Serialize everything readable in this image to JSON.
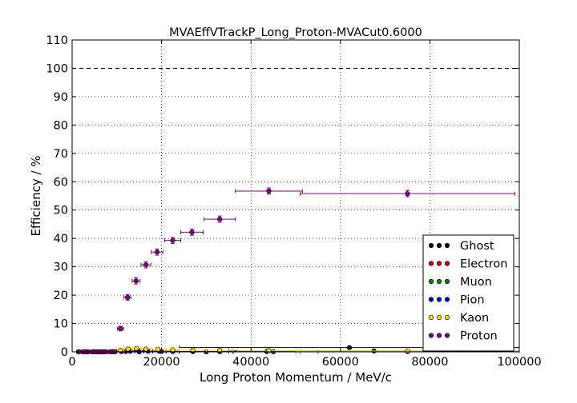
{
  "chart_data": {
    "type": "scatter",
    "title": "MVAEffVTrackP_Long_Proton-MVACut0.6000",
    "xlabel": "Long Proton Momentum / MeV/c",
    "ylabel": "Efficiency / %",
    "xlim": [
      0,
      100000
    ],
    "ylim": [
      0,
      110
    ],
    "x_ticks": [
      0,
      20000,
      40000,
      60000,
      80000,
      100000
    ],
    "y_ticks": [
      0,
      10,
      20,
      30,
      40,
      50,
      60,
      70,
      80,
      90,
      100,
      110
    ],
    "grid": true,
    "reference_line": 100,
    "legend_position": "lower-right",
    "series": [
      {
        "name": "Ghost",
        "color": "#000000",
        "points": [
          {
            "x": 1500,
            "y": 0,
            "xerr": 500,
            "yerr": 0
          },
          {
            "x": 2500,
            "y": 0,
            "xerr": 500,
            "yerr": 0
          },
          {
            "x": 3500,
            "y": 0,
            "xerr": 500,
            "yerr": 0
          },
          {
            "x": 4500,
            "y": 0,
            "xerr": 500,
            "yerr": 0
          },
          {
            "x": 5500,
            "y": 0,
            "xerr": 500,
            "yerr": 0
          },
          {
            "x": 6500,
            "y": 0,
            "xerr": 500,
            "yerr": 0
          },
          {
            "x": 7500,
            "y": 0,
            "xerr": 500,
            "yerr": 0
          },
          {
            "x": 8500,
            "y": 0,
            "xerr": 500,
            "yerr": 0
          },
          {
            "x": 9500,
            "y": 0,
            "xerr": 500,
            "yerr": 0
          },
          {
            "x": 11000,
            "y": 0.2,
            "xerr": 1000,
            "yerr": 0.3
          },
          {
            "x": 13000,
            "y": 0.3,
            "xerr": 1000,
            "yerr": 0.3
          },
          {
            "x": 15000,
            "y": 0.4,
            "xerr": 1000,
            "yerr": 0.3
          },
          {
            "x": 17000,
            "y": 0.3,
            "xerr": 1000,
            "yerr": 0.3
          },
          {
            "x": 19500,
            "y": 0.2,
            "xerr": 1500,
            "yerr": 0.3
          },
          {
            "x": 22500,
            "y": 0.2,
            "xerr": 1500,
            "yerr": 0.3
          },
          {
            "x": 27000,
            "y": 0.1,
            "xerr": 3000,
            "yerr": 0.3
          },
          {
            "x": 33000,
            "y": 0.1,
            "xerr": 3000,
            "yerr": 0.3
          },
          {
            "x": 62000,
            "y": 1.5,
            "xerr": 38000,
            "yerr": 0.4
          },
          {
            "x": 67500,
            "y": 0.3,
            "xerr": 32500,
            "yerr": 0.3
          }
        ]
      },
      {
        "name": "Electron",
        "color": "#cc0000",
        "points": [
          {
            "x": 2500,
            "y": 0,
            "xerr": 1500,
            "yerr": 0
          },
          {
            "x": 6000,
            "y": 0,
            "xerr": 2000,
            "yerr": 0
          },
          {
            "x": 12000,
            "y": 0.1,
            "xerr": 3000,
            "yerr": 0.2
          },
          {
            "x": 20000,
            "y": 0.1,
            "xerr": 4000,
            "yerr": 0.2
          },
          {
            "x": 30000,
            "y": 0,
            "xerr": 6000,
            "yerr": 0.2
          }
        ]
      },
      {
        "name": "Muon",
        "color": "#008000",
        "points": [
          {
            "x": 3000,
            "y": 0,
            "xerr": 2000,
            "yerr": 0
          },
          {
            "x": 15000,
            "y": 0,
            "xerr": 5000,
            "yerr": 0.2
          },
          {
            "x": 45000,
            "y": 0,
            "xerr": 10000,
            "yerr": 0.2
          }
        ]
      },
      {
        "name": "Pion",
        "color": "#0000cc",
        "points": [
          {
            "x": 1500,
            "y": 0,
            "xerr": 500,
            "yerr": 0
          },
          {
            "x": 3000,
            "y": 0,
            "xerr": 1000,
            "yerr": 0
          },
          {
            "x": 5000,
            "y": 0,
            "xerr": 1000,
            "yerr": 0
          },
          {
            "x": 7000,
            "y": 0,
            "xerr": 1000,
            "yerr": 0
          },
          {
            "x": 9000,
            "y": 0,
            "xerr": 1000,
            "yerr": 0
          },
          {
            "x": 11000,
            "y": 0.1,
            "xerr": 1000,
            "yerr": 0.2
          },
          {
            "x": 13000,
            "y": 0.2,
            "xerr": 1000,
            "yerr": 0.2
          },
          {
            "x": 15000,
            "y": 0.3,
            "xerr": 1000,
            "yerr": 0.2
          },
          {
            "x": 17000,
            "y": 0.2,
            "xerr": 1000,
            "yerr": 0.2
          },
          {
            "x": 19500,
            "y": 0.2,
            "xerr": 1500,
            "yerr": 0.2
          },
          {
            "x": 22500,
            "y": 0.1,
            "xerr": 1500,
            "yerr": 0.2
          },
          {
            "x": 27000,
            "y": 0.1,
            "xerr": 3000,
            "yerr": 0.2
          },
          {
            "x": 33000,
            "y": 0.1,
            "xerr": 3000,
            "yerr": 0.2
          },
          {
            "x": 43500,
            "y": 0.1,
            "xerr": 7500,
            "yerr": 0.2
          },
          {
            "x": 75000,
            "y": 0.1,
            "xerr": 25000,
            "yerr": 0.2
          }
        ]
      },
      {
        "name": "Kaon",
        "color": "#ffd700",
        "points": [
          {
            "x": 1500,
            "y": 0,
            "xerr": 500,
            "yerr": 0
          },
          {
            "x": 3000,
            "y": 0,
            "xerr": 1000,
            "yerr": 0
          },
          {
            "x": 5000,
            "y": 0,
            "xerr": 1000,
            "yerr": 0
          },
          {
            "x": 7000,
            "y": 0,
            "xerr": 1000,
            "yerr": 0
          },
          {
            "x": 9000,
            "y": 0,
            "xerr": 1000,
            "yerr": 0
          },
          {
            "x": 10800,
            "y": 0.5,
            "xerr": 800,
            "yerr": 0.3
          },
          {
            "x": 12500,
            "y": 1.0,
            "xerr": 900,
            "yerr": 0.4
          },
          {
            "x": 14400,
            "y": 1.2,
            "xerr": 900,
            "yerr": 0.4
          },
          {
            "x": 16500,
            "y": 1.0,
            "xerr": 1000,
            "yerr": 0.4
          },
          {
            "x": 19200,
            "y": 0.9,
            "xerr": 1500,
            "yerr": 0.4
          },
          {
            "x": 22500,
            "y": 0.7,
            "xerr": 1500,
            "yerr": 0.3
          },
          {
            "x": 27000,
            "y": 0.6,
            "xerr": 3000,
            "yerr": 0.3
          },
          {
            "x": 33000,
            "y": 0.5,
            "xerr": 3000,
            "yerr": 0.3
          },
          {
            "x": 44000,
            "y": 0.4,
            "xerr": 7000,
            "yerr": 0.3
          },
          {
            "x": 75000,
            "y": 0.3,
            "xerr": 25000,
            "yerr": 0.3
          }
        ]
      },
      {
        "name": "Proton",
        "color": "#800080",
        "points": [
          {
            "x": 1500,
            "y": 0,
            "xerr": 500,
            "yerr": 0
          },
          {
            "x": 2500,
            "y": 0,
            "xerr": 500,
            "yerr": 0
          },
          {
            "x": 3500,
            "y": 0,
            "xerr": 500,
            "yerr": 0
          },
          {
            "x": 4500,
            "y": 0,
            "xerr": 500,
            "yerr": 0
          },
          {
            "x": 5500,
            "y": 0,
            "xerr": 500,
            "yerr": 0
          },
          {
            "x": 6500,
            "y": 0,
            "xerr": 500,
            "yerr": 0
          },
          {
            "x": 7500,
            "y": 0,
            "xerr": 500,
            "yerr": 0
          },
          {
            "x": 8500,
            "y": 0,
            "xerr": 500,
            "yerr": 0
          },
          {
            "x": 9500,
            "y": 0.1,
            "xerr": 500,
            "yerr": 0.1
          },
          {
            "x": 10800,
            "y": 8.2,
            "xerr": 700,
            "yerr": 0.8
          },
          {
            "x": 12400,
            "y": 19.2,
            "xerr": 800,
            "yerr": 1.0
          },
          {
            "x": 14300,
            "y": 25.0,
            "xerr": 900,
            "yerr": 1.1
          },
          {
            "x": 16500,
            "y": 30.7,
            "xerr": 1100,
            "yerr": 1.1
          },
          {
            "x": 19000,
            "y": 35.2,
            "xerr": 1300,
            "yerr": 1.1
          },
          {
            "x": 22500,
            "y": 39.3,
            "xerr": 1800,
            "yerr": 1.1
          },
          {
            "x": 26800,
            "y": 42.2,
            "xerr": 2500,
            "yerr": 1.1
          },
          {
            "x": 33000,
            "y": 46.8,
            "xerr": 3500,
            "yerr": 1.1
          },
          {
            "x": 44000,
            "y": 56.7,
            "xerr": 7500,
            "yerr": 1.1
          },
          {
            "x": 75000,
            "y": 55.8,
            "xerr": 24000,
            "yerr": 1.1
          }
        ]
      }
    ]
  }
}
